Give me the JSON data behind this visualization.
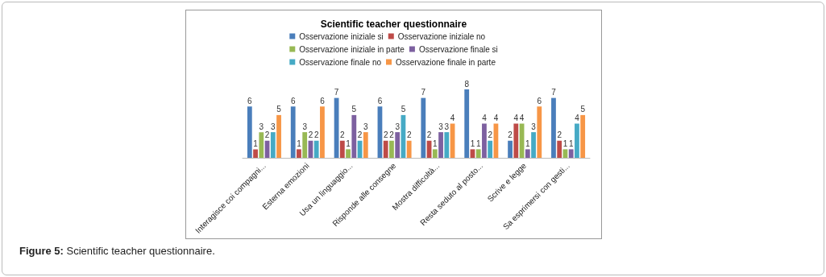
{
  "chart_data": {
    "type": "bar",
    "title": "Scientific teacher questionnaire",
    "categories": [
      "Interagisce coi compagni...",
      "Esterna emozioni",
      "Usa un linguaggio...",
      "Risponde alle consegne",
      "Mostra difficoltà...",
      "Resta seduto al posto...",
      "Scrive e legge",
      "Sa esprimersi con gesti..."
    ],
    "series": [
      {
        "name": "Osservazione iniziale si",
        "color": "#4a7ebb",
        "values": [
          6,
          6,
          7,
          6,
          7,
          8,
          2,
          7
        ]
      },
      {
        "name": "Osservazione iniziale no",
        "color": "#be4b48",
        "values": [
          1,
          1,
          2,
          2,
          2,
          1,
          4,
          2
        ]
      },
      {
        "name": "Osservazione iniziale in parte",
        "color": "#98b954",
        "values": [
          3,
          3,
          1,
          2,
          1,
          1,
          4,
          1
        ]
      },
      {
        "name": "Osservazione finale si",
        "color": "#7d60a0",
        "values": [
          2,
          2,
          5,
          3,
          3,
          4,
          1,
          1
        ]
      },
      {
        "name": "Osservazione finale no",
        "color": "#46aac5",
        "values": [
          3,
          2,
          2,
          5,
          3,
          2,
          3,
          4
        ]
      },
      {
        "name": "Osservazione finale in parte",
        "color": "#f79646",
        "values": [
          5,
          6,
          3,
          2,
          4,
          4,
          6,
          5
        ]
      }
    ],
    "data_labels": true,
    "legend": "top",
    "annotations": [
      "Figure 5: Scientific teacher questionnaire."
    ]
  }
}
